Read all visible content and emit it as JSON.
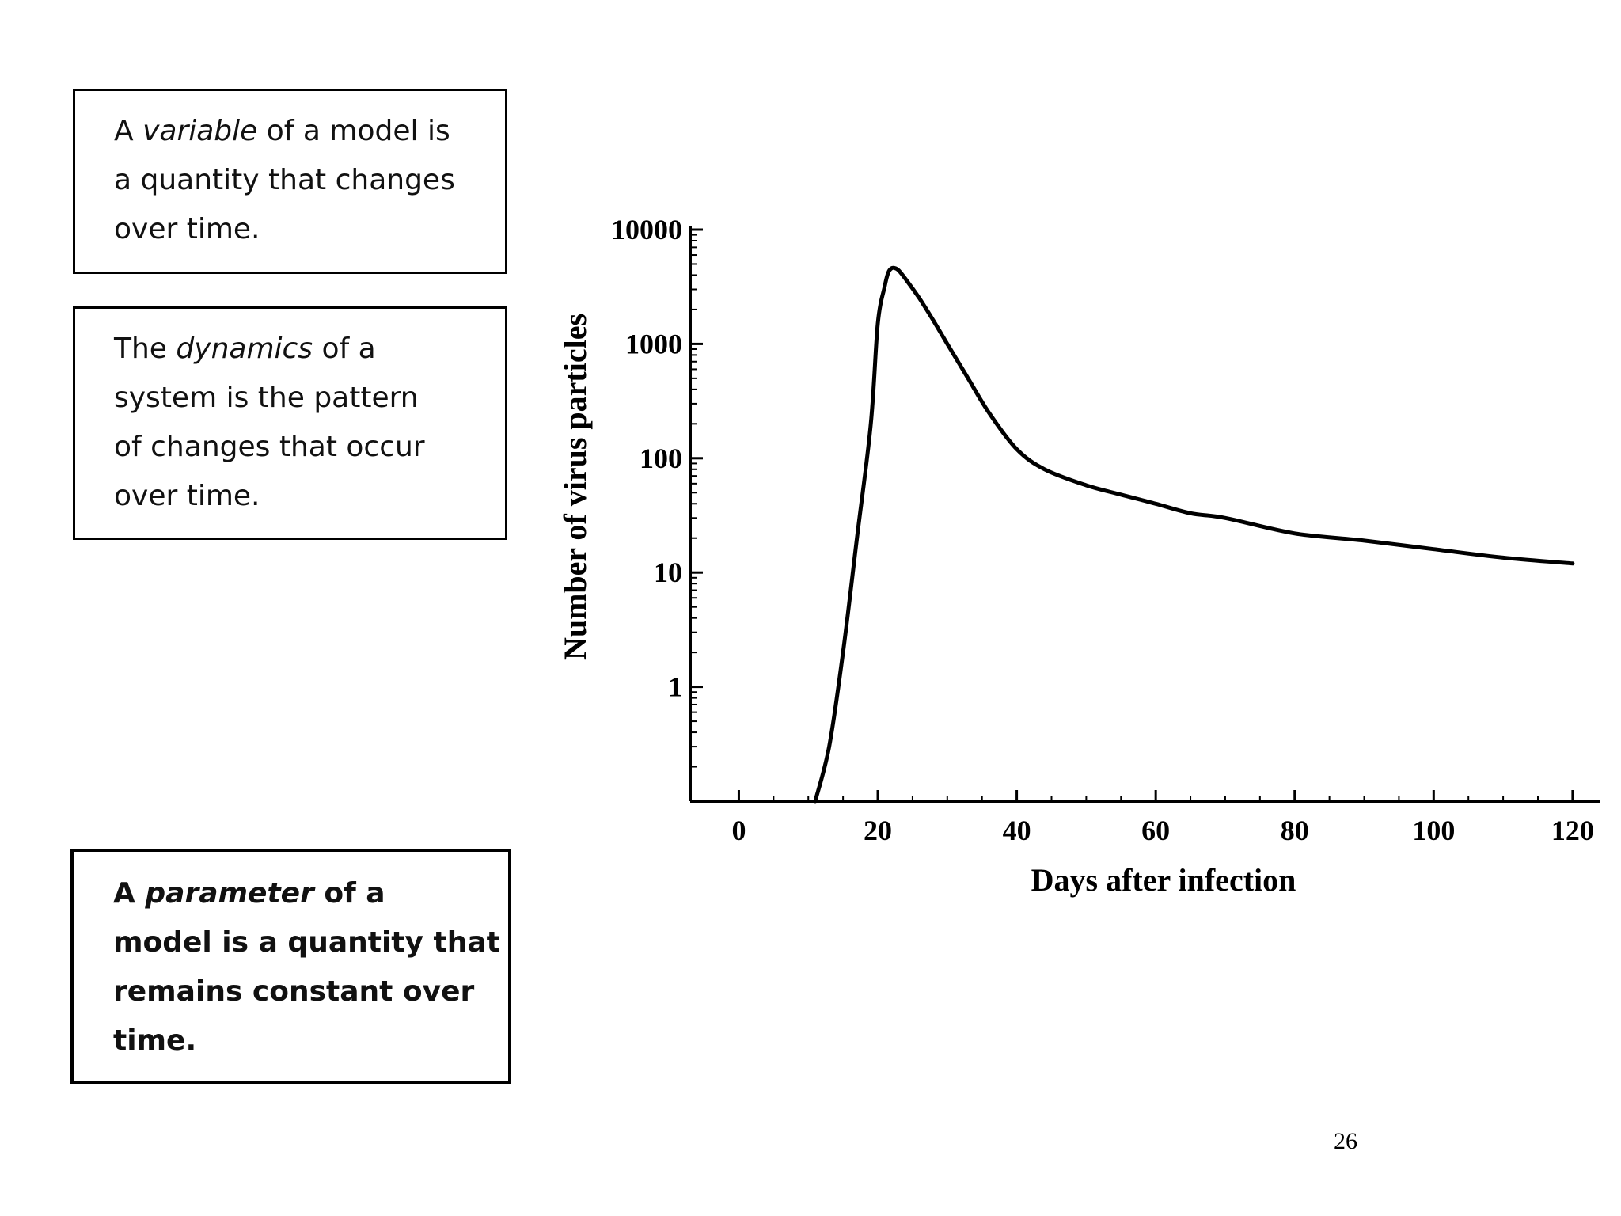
{
  "definitions": {
    "variable": {
      "lines": [
        {
          "pre": "A ",
          "em": "variable",
          "post": " of a model is"
        },
        {
          "text": "a quantity that changes"
        },
        {
          "text": "over time."
        }
      ]
    },
    "dynamics": {
      "lines": [
        {
          "pre": "The ",
          "em": "dynamics",
          "post": " of a"
        },
        {
          "text": "system is the pattern"
        },
        {
          "text": "of changes that occur"
        },
        {
          "text": "over time."
        }
      ]
    },
    "parameter": {
      "lines": [
        {
          "pre": "A ",
          "em": "parameter",
          "post": " of a"
        },
        {
          "text": "model is a quantity that"
        },
        {
          "text": "remains constant over"
        },
        {
          "text": "time."
        }
      ]
    }
  },
  "page_number": "26",
  "chart_data": {
    "type": "line",
    "title": "",
    "xlabel": "Days after infection",
    "ylabel": "Number of virus particles",
    "y_scale": "log",
    "xlim": [
      -7,
      124
    ],
    "ylim": [
      0.1,
      10000
    ],
    "x_ticks": [
      0,
      20,
      40,
      60,
      80,
      100,
      120
    ],
    "x_tick_labels": [
      "0",
      "20",
      "40",
      "60",
      "80",
      "100",
      "120"
    ],
    "y_ticks": [
      1,
      10,
      100,
      1000,
      10000
    ],
    "y_tick_labels": [
      "1",
      "10",
      "100",
      "1000",
      "10000"
    ],
    "grid": false,
    "series": [
      {
        "color": "#000000",
        "x": [
          11,
          13,
          15,
          17,
          19,
          20,
          21,
          21.5,
          22,
          22.5,
          23,
          24,
          26,
          28,
          30,
          33,
          36,
          40,
          44,
          50,
          55,
          60,
          65,
          70,
          80,
          90,
          100,
          110,
          120
        ],
        "y": [
          0.1,
          0.3,
          2,
          20,
          200,
          1500,
          3200,
          4200,
          4600,
          4600,
          4400,
          3700,
          2500,
          1600,
          1000,
          500,
          250,
          120,
          80,
          58,
          48,
          40,
          33,
          30,
          22,
          19,
          16,
          13.5,
          12
        ]
      }
    ]
  }
}
